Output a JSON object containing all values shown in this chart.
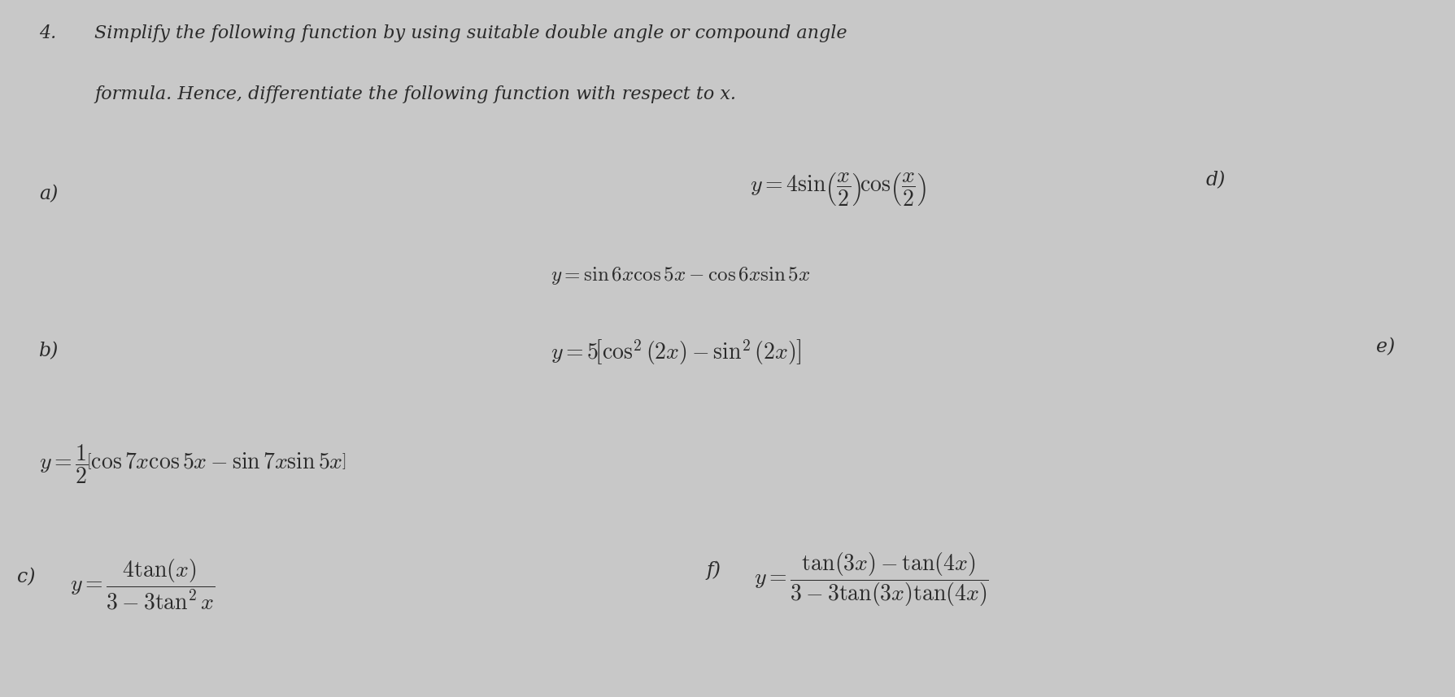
{
  "background_color": "#c8c8c8",
  "text_color": "#2a2a2a",
  "title_num": "4.",
  "title_line1": "Simplify the following function by using suitable double angle or compound angle",
  "title_line2": "formula. Hence, differentiate the following function with respect to x.",
  "label_a": "a)",
  "label_b": "b)",
  "label_c": "c)",
  "label_d": "d)",
  "label_e": "e)",
  "label_f": "f)",
  "eq_a": "$y = 4\\sin\\!\\left(\\dfrac{x}{2}\\right)\\!\\cos\\!\\left(\\dfrac{x}{2}\\right)$",
  "eq_d": "$y = \\sin 6x\\cos 5x - \\cos 6x\\sin 5x$",
  "eq_b": "$y = 5\\!\\left[\\cos^2(2x) - \\sin^2(2x)\\right]$",
  "eq_e": "$y = \\dfrac{1}{2}\\!\\left[\\cos 7x\\cos 5x - \\sin 7x\\sin 5x\\right]$",
  "eq_c": "$y = \\dfrac{4\\tan(x)}{3 - 3\\tan^2 x}$",
  "eq_f": "$y = \\dfrac{\\tan(3x) - \\tan(4x)}{3 - 3\\tan(3x)\\tan(4x)}$",
  "fs_title": 16,
  "fs_label": 17,
  "fs_eq": 18,
  "fs_eq_large": 20
}
